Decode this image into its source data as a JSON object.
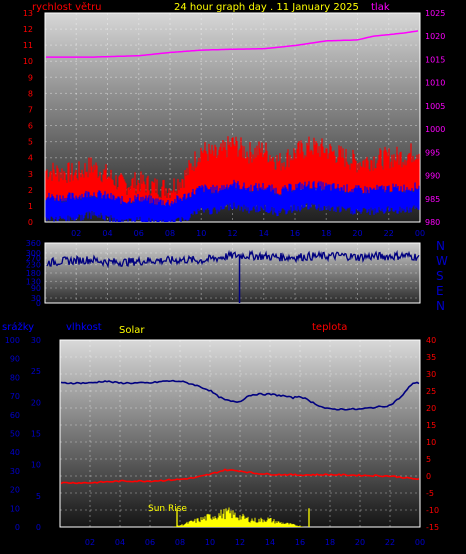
{
  "header": {
    "wind_label": "rychlost větru",
    "title": "24 hour graph day . 11 January 2025",
    "pressure_label": "tlak"
  },
  "lower_labels": {
    "rain": "srážky",
    "humidity": "vlhkost",
    "solar": "Solar",
    "temperature": "teplota",
    "sun_rise": "Sun Rise"
  },
  "colors": {
    "wind_gust": "#ff0000",
    "wind_avg": "#0000ff",
    "pressure": "#ff00ff",
    "direction": "#000080",
    "humidity": "#000080",
    "temperature": "#ff0000",
    "solar": "#ffff00"
  },
  "chart_data": [
    {
      "type": "line",
      "x_ticks": [
        "02",
        "04",
        "06",
        "08",
        "10",
        "12",
        "14",
        "16",
        "18",
        "20",
        "22",
        "00"
      ],
      "y_left": {
        "label": "rychlost větru",
        "range": [
          0,
          13
        ],
        "ticks": [
          0,
          1,
          2,
          3,
          4,
          5,
          6,
          7,
          8,
          9,
          10,
          11,
          12,
          13
        ]
      },
      "y_right": {
        "label": "tlak",
        "range": [
          980,
          1025
        ],
        "ticks": [
          980,
          985,
          990,
          995,
          1000,
          1005,
          1010,
          1015,
          1020,
          1025
        ]
      },
      "series": [
        {
          "key": "pressure",
          "axis": "right",
          "points": [
            [
              0,
              1015.5
            ],
            [
              3,
              1015.5
            ],
            [
              6,
              1015.8
            ],
            [
              8,
              1016.5
            ],
            [
              10,
              1017
            ],
            [
              12,
              1017.2
            ],
            [
              14,
              1017.3
            ],
            [
              16,
              1018
            ],
            [
              18,
              1019
            ],
            [
              20,
              1019.2
            ],
            [
              21,
              1020
            ],
            [
              23,
              1020.7
            ],
            [
              24,
              1021.2
            ]
          ]
        },
        {
          "key": "wind_gust",
          "axis": "left",
          "points": [
            [
              0,
              2.5
            ],
            [
              1,
              2.4
            ],
            [
              2,
              2.3
            ],
            [
              3,
              2.8
            ],
            [
              4,
              2.2
            ],
            [
              5,
              1.6
            ],
            [
              6,
              1.8
            ],
            [
              7,
              1.5
            ],
            [
              8,
              1.4
            ],
            [
              9,
              2.2
            ],
            [
              10,
              3.8
            ],
            [
              11,
              3.4
            ],
            [
              12,
              4.2
            ],
            [
              13,
              3.6
            ],
            [
              14,
              3.8
            ],
            [
              15,
              3.0
            ],
            [
              16,
              3.6
            ],
            [
              17,
              4.0
            ],
            [
              18,
              3.8
            ],
            [
              19,
              3.4
            ],
            [
              20,
              3.0
            ],
            [
              21,
              3.2
            ],
            [
              22,
              3.3
            ],
            [
              23,
              3.4
            ],
            [
              24,
              3.8
            ]
          ]
        },
        {
          "key": "wind_avg",
          "axis": "left",
          "points": [
            [
              0,
              0.9
            ],
            [
              1,
              0.8
            ],
            [
              2,
              0.9
            ],
            [
              3,
              1.1
            ],
            [
              4,
              0.9
            ],
            [
              5,
              0.6
            ],
            [
              6,
              0.8
            ],
            [
              7,
              0.6
            ],
            [
              8,
              0.5
            ],
            [
              9,
              0.9
            ],
            [
              10,
              1.4
            ],
            [
              11,
              1.3
            ],
            [
              12,
              1.7
            ],
            [
              13,
              1.4
            ],
            [
              14,
              1.5
            ],
            [
              15,
              1.2
            ],
            [
              16,
              1.5
            ],
            [
              17,
              1.6
            ],
            [
              18,
              1.5
            ],
            [
              19,
              1.4
            ],
            [
              20,
              1.3
            ],
            [
              21,
              1.3
            ],
            [
              22,
              1.4
            ],
            [
              23,
              1.4
            ],
            [
              24,
              1.5
            ]
          ]
        }
      ]
    },
    {
      "type": "line",
      "x_ticks": [
        "02",
        "04",
        "06",
        "08",
        "10",
        "12",
        "14",
        "16",
        "18",
        "20",
        "22",
        "00"
      ],
      "y_left": {
        "range": [
          0,
          360
        ],
        "ticks": [
          0,
          30,
          90,
          130,
          180,
          230,
          270,
          300,
          360
        ]
      },
      "compass": [
        "N",
        "W",
        "S",
        "E",
        "N"
      ],
      "series": [
        {
          "key": "direction",
          "points": [
            [
              0,
              240
            ],
            [
              1,
              250
            ],
            [
              2,
              255
            ],
            [
              3,
              260
            ],
            [
              4,
              245
            ],
            [
              5,
              245
            ],
            [
              6,
              250
            ],
            [
              7,
              255
            ],
            [
              8,
              255
            ],
            [
              9,
              260
            ],
            [
              10,
              255
            ],
            [
              11,
              270
            ],
            [
              12,
              285
            ],
            [
              13,
              285
            ],
            [
              14,
              280
            ],
            [
              15,
              275
            ],
            [
              16,
              275
            ],
            [
              17,
              280
            ],
            [
              18,
              280
            ],
            [
              19,
              285
            ],
            [
              20,
              275
            ],
            [
              21,
              280
            ],
            [
              22,
              280
            ],
            [
              23,
              285
            ],
            [
              24,
              275
            ]
          ]
        }
      ],
      "spike": {
        "x": 12.45,
        "y": 0
      }
    },
    {
      "type": "line",
      "x_ticks": [
        "02",
        "04",
        "06",
        "08",
        "10",
        "12",
        "14",
        "16",
        "18",
        "20",
        "22",
        "00"
      ],
      "y_left": {
        "label": "srážky",
        "range": [
          0,
          100
        ],
        "ticks": [
          0,
          10,
          20,
          30,
          40,
          50,
          60,
          70,
          80,
          90,
          100
        ]
      },
      "y_left2": {
        "label": "vlhkost",
        "range": [
          0,
          30
        ],
        "ticks": [
          0,
          5,
          10,
          15,
          20,
          25,
          30
        ]
      },
      "y_right": {
        "label": "teplota",
        "range": [
          -15,
          40
        ],
        "ticks": [
          -15,
          -10,
          -5,
          0,
          5,
          10,
          15,
          20,
          25,
          30,
          35,
          40
        ]
      },
      "series": [
        {
          "key": "humidity",
          "axis": "left",
          "points": [
            [
              0,
              77
            ],
            [
              2,
              77
            ],
            [
              3,
              78
            ],
            [
              4,
              77
            ],
            [
              6,
              77
            ],
            [
              7,
              78
            ],
            [
              8,
              78
            ],
            [
              9,
              76
            ],
            [
              10,
              73
            ],
            [
              10.5,
              70
            ],
            [
              11,
              68
            ],
            [
              11.5,
              67
            ],
            [
              12,
              67
            ],
            [
              12.5,
              70
            ],
            [
              13,
              71
            ],
            [
              14,
              71
            ],
            [
              15,
              70
            ],
            [
              15.5,
              69
            ],
            [
              16,
              70
            ],
            [
              16.5,
              68
            ],
            [
              17,
              66
            ],
            [
              17.5,
              64
            ],
            [
              18,
              63
            ],
            [
              18.5,
              63
            ],
            [
              20,
              63
            ],
            [
              21,
              64
            ],
            [
              22,
              65
            ],
            [
              22.8,
              70
            ],
            [
              23.5,
              77
            ],
            [
              24,
              77
            ]
          ]
        },
        {
          "key": "temperature",
          "axis": "right",
          "points": [
            [
              0,
              -2
            ],
            [
              2,
              -2
            ],
            [
              4,
              -1.5
            ],
            [
              6,
              -1.5
            ],
            [
              8,
              -1
            ],
            [
              9,
              -0.5
            ],
            [
              10,
              0.5
            ],
            [
              11,
              1.8
            ],
            [
              12,
              1.5
            ],
            [
              13,
              0.8
            ],
            [
              14,
              0.5
            ],
            [
              16,
              0.3
            ],
            [
              18,
              0.4
            ],
            [
              20,
              0.2
            ],
            [
              22,
              0
            ],
            [
              23,
              -0.5
            ],
            [
              24,
              -1
            ]
          ]
        },
        {
          "key": "solar",
          "axis": "left",
          "points": [
            [
              0,
              0
            ],
            [
              7.5,
              0
            ],
            [
              8,
              1
            ],
            [
              8.7,
              3
            ],
            [
              9.5,
              5
            ],
            [
              10.2,
              7
            ],
            [
              10.8,
              8
            ],
            [
              11.2,
              9
            ],
            [
              11.8,
              7
            ],
            [
              12.5,
              5
            ],
            [
              13.2,
              4
            ],
            [
              13.8,
              5
            ],
            [
              14.5,
              3
            ],
            [
              15.2,
              2
            ],
            [
              15.8,
              1
            ],
            [
              16.3,
              0
            ],
            [
              24,
              0
            ]
          ]
        }
      ],
      "markers": [
        {
          "x": 7.8,
          "y": 10
        },
        {
          "x": 16.6,
          "y": 10
        }
      ]
    }
  ]
}
